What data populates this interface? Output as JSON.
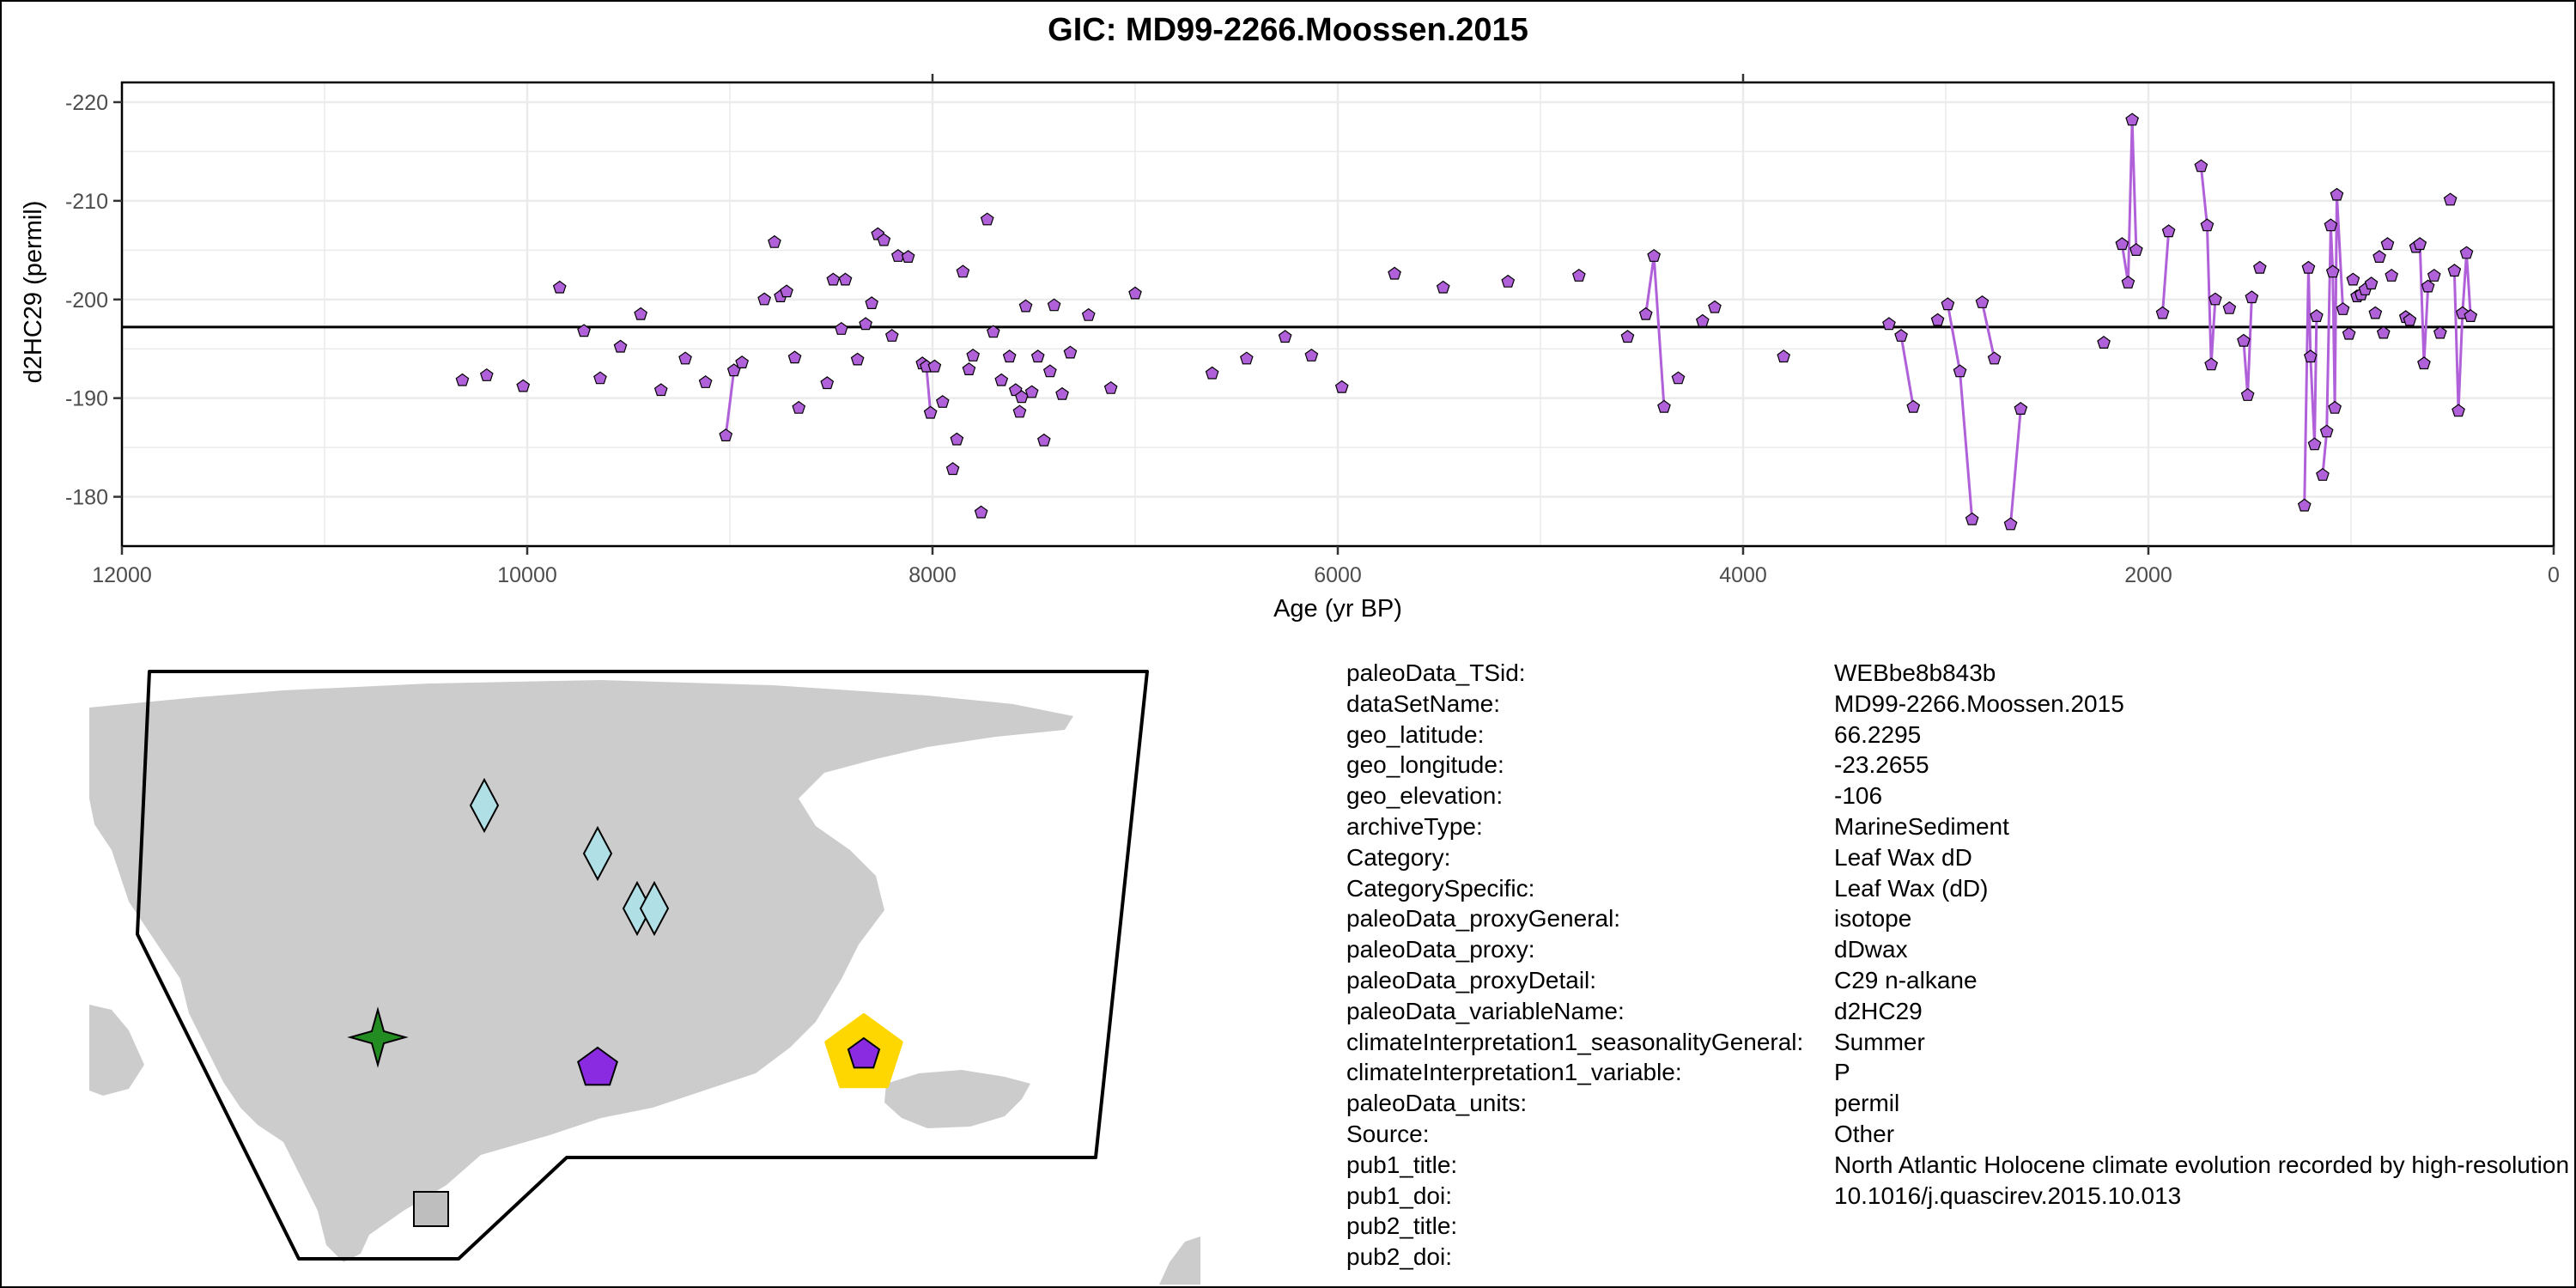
{
  "chart_data": {
    "type": "scatter",
    "title": "GIC: MD99-2266.Moossen.2015",
    "xlabel": "Age (yr BP)",
    "ylabel": "d2HC29 (permil)",
    "xlim": [
      12000,
      0
    ],
    "ylim": [
      -175,
      -222
    ],
    "x_reversed": true,
    "y_reversed": true,
    "x_ticks": [
      12000,
      10000,
      8000,
      6000,
      4000,
      2000,
      0
    ],
    "y_ticks": [
      -180,
      -190,
      -200,
      -210,
      -220
    ],
    "reference_line_y": -197.2,
    "grid": true,
    "marker": "pentagon",
    "marker_color": "#b060d8",
    "line_color": "#b060d8",
    "points": [
      [
        10320,
        -191.8
      ],
      [
        10200,
        -192.3
      ],
      [
        10020,
        -191.2
      ],
      [
        9840,
        -201.2
      ],
      [
        9720,
        -196.8
      ],
      [
        9640,
        -192
      ],
      [
        9540,
        -195.2
      ],
      [
        9440,
        -198.5
      ],
      [
        9340,
        -190.8
      ],
      [
        9220,
        -194
      ],
      [
        9120,
        -191.6
      ],
      [
        9020,
        -186.2
      ],
      [
        8980,
        -192.8
      ],
      [
        8940,
        -193.6
      ],
      [
        8830,
        -200
      ],
      [
        8780,
        -205.8
      ],
      [
        8750,
        -200.3
      ],
      [
        8720,
        -200.8
      ],
      [
        8680,
        -194.1
      ],
      [
        8660,
        -189
      ],
      [
        8520,
        -191.5
      ],
      [
        8490,
        -202
      ],
      [
        8450,
        -197
      ],
      [
        8430,
        -202
      ],
      [
        8370,
        -193.9
      ],
      [
        8330,
        -197.5
      ],
      [
        8300,
        -199.6
      ],
      [
        8270,
        -206.6
      ],
      [
        8240,
        -206
      ],
      [
        8200,
        -196.3
      ],
      [
        8170,
        -204.4
      ],
      [
        8120,
        -204.3
      ],
      [
        8050,
        -193.5
      ],
      [
        8030,
        -193.2
      ],
      [
        8010,
        -188.5
      ],
      [
        7990,
        -193.2
      ],
      [
        7950,
        -189.6
      ],
      [
        7900,
        -182.8
      ],
      [
        7880,
        -185.8
      ],
      [
        7850,
        -202.8
      ],
      [
        7820,
        -192.9
      ],
      [
        7800,
        -194.3
      ],
      [
        7760,
        -178.4
      ],
      [
        7730,
        -208.1
      ],
      [
        7700,
        -196.7
      ],
      [
        7660,
        -191.8
      ],
      [
        7620,
        -194.2
      ],
      [
        7590,
        -190.8
      ],
      [
        7570,
        -188.6
      ],
      [
        7560,
        -190.1
      ],
      [
        7540,
        -199.3
      ],
      [
        7510,
        -190.6
      ],
      [
        7480,
        -194.2
      ],
      [
        7450,
        -185.7
      ],
      [
        7420,
        -192.7
      ],
      [
        7400,
        -199.4
      ],
      [
        7360,
        -190.4
      ],
      [
        7320,
        -194.6
      ],
      [
        7230,
        -198.4
      ],
      [
        7120,
        -191
      ],
      [
        7000,
        -200.6
      ],
      [
        6620,
        -192.5
      ],
      [
        6450,
        -194
      ],
      [
        6260,
        -196.2
      ],
      [
        6130,
        -194.3
      ],
      [
        5980,
        -191.1
      ],
      [
        5720,
        -202.6
      ],
      [
        5480,
        -201.2
      ],
      [
        5160,
        -201.8
      ],
      [
        4810,
        -202.4
      ],
      [
        4570,
        -196.2
      ],
      [
        4480,
        -198.5
      ],
      [
        4440,
        -204.4
      ],
      [
        4390,
        -189.1
      ],
      [
        4320,
        -192
      ],
      [
        4200,
        -197.8
      ],
      [
        4140,
        -199.2
      ],
      [
        3800,
        -194.2
      ],
      [
        3280,
        -197.5
      ],
      [
        3220,
        -196.3
      ],
      [
        3160,
        -189.1
      ],
      [
        3040,
        -197.9
      ],
      [
        2990,
        -199.5
      ],
      [
        2930,
        -192.7
      ],
      [
        2870,
        -177.7
      ],
      [
        2820,
        -199.7
      ],
      [
        2760,
        -194
      ],
      [
        2680,
        -177.2
      ],
      [
        2630,
        -188.9
      ],
      [
        2220,
        -195.6
      ],
      [
        2130,
        -205.6
      ],
      [
        2100,
        -201.7
      ],
      [
        2080,
        -218.2
      ],
      [
        2060,
        -205
      ],
      [
        1930,
        -198.6
      ],
      [
        1900,
        -206.9
      ],
      [
        1740,
        -213.5
      ],
      [
        1710,
        -207.5
      ],
      [
        1690,
        -193.4
      ],
      [
        1670,
        -200
      ],
      [
        1600,
        -199.1
      ],
      [
        1530,
        -195.8
      ],
      [
        1510,
        -190.3
      ],
      [
        1490,
        -200.2
      ],
      [
        1450,
        -203.2
      ],
      [
        1230,
        -179.1
      ],
      [
        1210,
        -203.2
      ],
      [
        1200,
        -194.2
      ],
      [
        1180,
        -185.3
      ],
      [
        1170,
        -198.3
      ],
      [
        1140,
        -182.2
      ],
      [
        1120,
        -186.6
      ],
      [
        1100,
        -207.5
      ],
      [
        1090,
        -202.8
      ],
      [
        1080,
        -189
      ],
      [
        1070,
        -210.6
      ],
      [
        1040,
        -199
      ],
      [
        1010,
        -196.5
      ],
      [
        990,
        -202
      ],
      [
        970,
        -200.3
      ],
      [
        950,
        -200.5
      ],
      [
        930,
        -201
      ],
      [
        900,
        -201.6
      ],
      [
        880,
        -198.6
      ],
      [
        860,
        -204.3
      ],
      [
        840,
        -196.6
      ],
      [
        820,
        -205.6
      ],
      [
        800,
        -202.4
      ],
      [
        730,
        -198.2
      ],
      [
        710,
        -197.9
      ],
      [
        680,
        -205.3
      ],
      [
        660,
        -205.6
      ],
      [
        640,
        -193.5
      ],
      [
        620,
        -201.3
      ],
      [
        590,
        -202.4
      ],
      [
        560,
        -196.6
      ],
      [
        510,
        -210.1
      ],
      [
        490,
        -202.9
      ],
      [
        470,
        -188.7
      ],
      [
        450,
        -198.6
      ],
      [
        430,
        -204.7
      ],
      [
        410,
        -198.3
      ]
    ],
    "segments": [
      [
        [
          9020,
          -186.2
        ],
        [
          8980,
          -192.8
        ]
      ],
      [
        [
          8030,
          -193.2
        ],
        [
          8010,
          -188.5
        ]
      ],
      [
        [
          4480,
          -198.5
        ],
        [
          4440,
          -204.4
        ],
        [
          4390,
          -189.1
        ]
      ],
      [
        [
          3220,
          -196.3
        ],
        [
          3160,
          -189.1
        ]
      ],
      [
        [
          2990,
          -199.5
        ],
        [
          2930,
          -192.7
        ],
        [
          2870,
          -177.7
        ]
      ],
      [
        [
          2820,
          -199.7
        ],
        [
          2760,
          -194
        ]
      ],
      [
        [
          2680,
          -177.2
        ],
        [
          2630,
          -188.9
        ]
      ],
      [
        [
          2130,
          -205.6
        ],
        [
          2100,
          -201.7
        ],
        [
          2080,
          -218.2
        ],
        [
          2060,
          -205
        ]
      ],
      [
        [
          1930,
          -198.6
        ],
        [
          1900,
          -206.9
        ]
      ],
      [
        [
          1740,
          -213.5
        ],
        [
          1710,
          -207.5
        ],
        [
          1690,
          -193.4
        ],
        [
          1670,
          -200
        ]
      ],
      [
        [
          1530,
          -195.8
        ],
        [
          1510,
          -190.3
        ],
        [
          1490,
          -200.2
        ]
      ],
      [
        [
          1230,
          -179.1
        ],
        [
          1210,
          -203.2
        ],
        [
          1200,
          -194.2
        ],
        [
          1180,
          -185.3
        ],
        [
          1170,
          -198.3
        ]
      ],
      [
        [
          1140,
          -182.2
        ],
        [
          1120,
          -186.6
        ],
        [
          1100,
          -207.5
        ],
        [
          1090,
          -202.8
        ],
        [
          1080,
          -189
        ],
        [
          1070,
          -210.6
        ],
        [
          1040,
          -199
        ]
      ],
      [
        [
          680,
          -205.3
        ],
        [
          660,
          -205.6
        ],
        [
          640,
          -193.5
        ],
        [
          620,
          -201.3
        ]
      ],
      [
        [
          490,
          -202.9
        ],
        [
          470,
          -188.7
        ],
        [
          450,
          -198.6
        ],
        [
          430,
          -204.7
        ],
        [
          410,
          -198.3
        ]
      ]
    ]
  },
  "map": {
    "land_color": "#cccccc",
    "border_color": "#000000",
    "markers": [
      {
        "shape": "diamond",
        "color": "#b0e0e6"
      },
      {
        "shape": "diamond",
        "color": "#b0e0e6"
      },
      {
        "shape": "diamond",
        "color": "#b0e0e6"
      },
      {
        "shape": "diamond",
        "color": "#b0e0e6"
      },
      {
        "shape": "star",
        "color": "#228b22"
      },
      {
        "shape": "pentagon",
        "color": "#8a2be2"
      },
      {
        "shape": "pentagon-highlight",
        "color": "#8a2be2",
        "highlight_color": "#ffd700"
      },
      {
        "shape": "square",
        "color": "#bebebe"
      }
    ]
  },
  "metadata": [
    {
      "key": "paleoData_TSid:",
      "value": "WEBbe8b843b"
    },
    {
      "key": "dataSetName:",
      "value": "MD99-2266.Moossen.2015"
    },
    {
      "key": "geo_latitude:",
      "value": "66.2295"
    },
    {
      "key": "geo_longitude:",
      "value": "-23.2655"
    },
    {
      "key": "geo_elevation:",
      "value": "-106"
    },
    {
      "key": "archiveType:",
      "value": "MarineSediment"
    },
    {
      "key": "Category:",
      "value": "Leaf Wax dD"
    },
    {
      "key": "CategorySpecific:",
      "value": "Leaf Wax (dD)"
    },
    {
      "key": "paleoData_proxyGeneral:",
      "value": "isotope"
    },
    {
      "key": "paleoData_proxy:",
      "value": "dDwax"
    },
    {
      "key": "paleoData_proxyDetail:",
      "value": "C29 n-alkane"
    },
    {
      "key": "paleoData_variableName:",
      "value": "d2HC29"
    },
    {
      "key": "climateInterpretation1_seasonalityGeneral:",
      "value": "Summer"
    },
    {
      "key": "climateInterpretation1_variable:",
      "value": "P"
    },
    {
      "key": "paleoData_units:",
      "value": "permil"
    },
    {
      "key": "Source:",
      "value": "Other"
    },
    {
      "key": "pub1_title:",
      "value": "North Atlantic Holocene climate evolution recorded by high-resolution"
    },
    {
      "key": "pub1_doi:",
      "value": "10.1016/j.quascirev.2015.10.013"
    },
    {
      "key": "pub2_title:",
      "value": ""
    },
    {
      "key": "pub2_doi:",
      "value": ""
    }
  ]
}
